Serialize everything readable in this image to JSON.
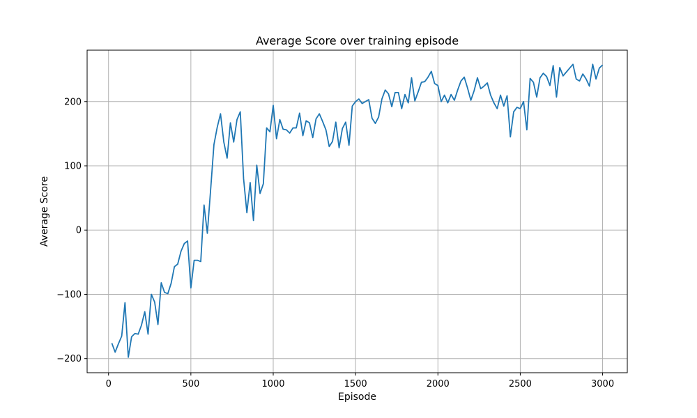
{
  "chart_data": {
    "type": "line",
    "title": "Average Score over training episode",
    "xlabel": "Episode",
    "ylabel": "Average Score",
    "xlim": [
      -130,
      3150
    ],
    "ylim": [
      -222,
      280
    ],
    "grid": true,
    "legend": "none",
    "xticks": [
      0,
      500,
      1000,
      1500,
      2000,
      2500,
      3000
    ],
    "xtick_labels": [
      "0",
      "500",
      "1000",
      "1500",
      "2000",
      "2500",
      "3000"
    ],
    "yticks": [
      -200,
      -100,
      0,
      100,
      200
    ],
    "ytick_labels": [
      "−200",
      "−100",
      "0",
      "100",
      "200"
    ],
    "colors": {
      "line": "#1f77b4",
      "grid": "#b0b0b0",
      "axes": "#000000"
    },
    "series": [
      {
        "x": [
          20,
          40,
          60,
          80,
          100,
          120,
          140,
          160,
          180,
          200,
          220,
          240,
          260,
          280,
          300,
          320,
          340,
          360,
          380,
          400,
          420,
          440,
          460,
          480,
          500,
          520,
          540,
          560,
          580,
          600,
          620,
          640,
          660,
          680,
          700,
          720,
          740,
          760,
          780,
          800,
          820,
          840,
          860,
          880,
          900,
          920,
          940,
          960,
          980,
          1000,
          1020,
          1040,
          1060,
          1080,
          1100,
          1120,
          1140,
          1160,
          1180,
          1200,
          1220,
          1240,
          1260,
          1280,
          1300,
          1320,
          1340,
          1360,
          1380,
          1400,
          1420,
          1440,
          1460,
          1480,
          1500,
          1520,
          1540,
          1560,
          1580,
          1600,
          1620,
          1640,
          1660,
          1680,
          1700,
          1720,
          1740,
          1760,
          1780,
          1800,
          1820,
          1840,
          1860,
          1880,
          1900,
          1920,
          1940,
          1960,
          1980,
          2000,
          2020,
          2040,
          2060,
          2080,
          2100,
          2120,
          2140,
          2160,
          2180,
          2200,
          2220,
          2240,
          2260,
          2280,
          2300,
          2320,
          2340,
          2360,
          2380,
          2400,
          2420,
          2440,
          2460,
          2480,
          2500,
          2520,
          2540,
          2560,
          2580,
          2600,
          2620,
          2640,
          2660,
          2680,
          2700,
          2720,
          2740,
          2760,
          2780,
          2800,
          2820,
          2840,
          2860,
          2880,
          2900,
          2920,
          2940,
          2960,
          2980,
          3000
        ],
        "y": [
          -176,
          -190,
          -177,
          -165,
          -113,
          -198,
          -166,
          -161,
          -162,
          -148,
          -127,
          -162,
          -100,
          -112,
          -147,
          -82,
          -97,
          -99,
          -83,
          -57,
          -53,
          -33,
          -21,
          -17,
          -90,
          -47,
          -47,
          -49,
          39,
          -5,
          63,
          133,
          160,
          181,
          137,
          112,
          167,
          137,
          172,
          184,
          80,
          27,
          74,
          15,
          101,
          57,
          72,
          159,
          153,
          194,
          142,
          172,
          157,
          156,
          151,
          159,
          159,
          182,
          147,
          170,
          167,
          144,
          173,
          181,
          169,
          156,
          130,
          138,
          168,
          128,
          158,
          168,
          132,
          193,
          200,
          204,
          197,
          200,
          203,
          174,
          166,
          176,
          204,
          218,
          212,
          192,
          214,
          214,
          189,
          211,
          198,
          237,
          201,
          215,
          230,
          231,
          238,
          247,
          228,
          225,
          200,
          210,
          198,
          211,
          202,
          218,
          232,
          238,
          221,
          202,
          217,
          237,
          220,
          224,
          229,
          210,
          198,
          189,
          210,
          193,
          209,
          145,
          184,
          191,
          189,
          200,
          156,
          236,
          230,
          207,
          237,
          244,
          239,
          225,
          256,
          207,
          253,
          240,
          246,
          252,
          258,
          235,
          232,
          243,
          235,
          224,
          258,
          235,
          252,
          257
        ]
      }
    ]
  }
}
